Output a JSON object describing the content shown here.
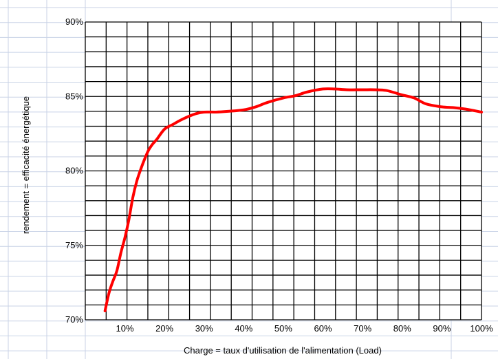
{
  "chart_data": {
    "type": "line",
    "title": "",
    "xlabel": "Charge = taux d'utilisation de l'alimentation (Load)",
    "ylabel": "rendement = efficacité énergétique",
    "xlim": [
      0,
      100
    ],
    "ylim": [
      70,
      90
    ],
    "x_ticks": [
      10,
      20,
      30,
      40,
      50,
      60,
      70,
      80,
      90,
      100
    ],
    "x_tick_labels": [
      "10%",
      "20%",
      "30%",
      "40%",
      "50%",
      "60%",
      "70%",
      "80%",
      "90%",
      "100%"
    ],
    "y_ticks": [
      70,
      75,
      80,
      85,
      90
    ],
    "y_tick_labels": [
      "70%",
      "75%",
      "80%",
      "85%",
      "90%"
    ],
    "grid": true,
    "legend": "none",
    "colors": {
      "line": "#ff0000",
      "grid": "#000000",
      "paper_lines": "#c8d2e6"
    },
    "series": [
      {
        "x": [
          5,
          6,
          7,
          8,
          9,
          10,
          11,
          12,
          13,
          14,
          15,
          16,
          17,
          18,
          20,
          22,
          24,
          26,
          28,
          30,
          33,
          36,
          40,
          43,
          46,
          50,
          53,
          56,
          60,
          63,
          66,
          70,
          73,
          76,
          80,
          83,
          86,
          90,
          93,
          96,
          100
        ],
        "values": [
          70.6,
          71.8,
          72.6,
          73.3,
          74.5,
          75.5,
          76.7,
          78.2,
          79.3,
          80.1,
          80.8,
          81.4,
          81.8,
          82.1,
          82.8,
          83.1,
          83.4,
          83.65,
          83.85,
          83.95,
          83.95,
          84.0,
          84.1,
          84.3,
          84.6,
          84.9,
          85.05,
          85.3,
          85.5,
          85.5,
          85.45,
          85.45,
          85.45,
          85.4,
          85.1,
          84.9,
          84.5,
          84.3,
          84.25,
          84.15,
          83.95
        ]
      }
    ]
  }
}
